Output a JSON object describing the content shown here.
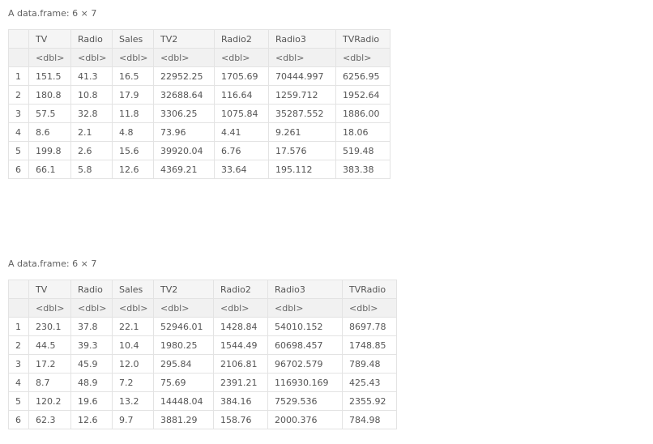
{
  "tables": [
    {
      "caption": "A data.frame: 6 × 7",
      "columns": [
        "TV",
        "Radio",
        "Sales",
        "TV2",
        "Radio2",
        "Radio3",
        "TVRadio"
      ],
      "types": [
        "<dbl>",
        "<dbl>",
        "<dbl>",
        "<dbl>",
        "<dbl>",
        "<dbl>",
        "<dbl>"
      ],
      "rows": [
        {
          "idx": "1",
          "cells": [
            "151.5",
            "41.3",
            "16.5",
            "22952.25",
            "1705.69",
            "70444.997",
            "6256.95"
          ]
        },
        {
          "idx": "2",
          "cells": [
            "180.8",
            "10.8",
            "17.9",
            "32688.64",
            "116.64",
            "1259.712",
            "1952.64"
          ]
        },
        {
          "idx": "3",
          "cells": [
            "57.5",
            "32.8",
            "11.8",
            "3306.25",
            "1075.84",
            "35287.552",
            "1886.00"
          ]
        },
        {
          "idx": "4",
          "cells": [
            "8.6",
            "2.1",
            "4.8",
            "73.96",
            "4.41",
            "9.261",
            "18.06"
          ]
        },
        {
          "idx": "5",
          "cells": [
            "199.8",
            "2.6",
            "15.6",
            "39920.04",
            "6.76",
            "17.576",
            "519.48"
          ]
        },
        {
          "idx": "6",
          "cells": [
            "66.1",
            "5.8",
            "12.6",
            "4369.21",
            "33.64",
            "195.112",
            "383.38"
          ]
        }
      ]
    },
    {
      "caption": "A data.frame: 6 × 7",
      "columns": [
        "TV",
        "Radio",
        "Sales",
        "TV2",
        "Radio2",
        "Radio3",
        "TVRadio"
      ],
      "types": [
        "<dbl>",
        "<dbl>",
        "<dbl>",
        "<dbl>",
        "<dbl>",
        "<dbl>",
        "<dbl>"
      ],
      "rows": [
        {
          "idx": "1",
          "cells": [
            "230.1",
            "37.8",
            "22.1",
            "52946.01",
            "1428.84",
            "54010.152",
            "8697.78"
          ]
        },
        {
          "idx": "2",
          "cells": [
            "44.5",
            "39.3",
            "10.4",
            "1980.25",
            "1544.49",
            "60698.457",
            "1748.85"
          ]
        },
        {
          "idx": "3",
          "cells": [
            "17.2",
            "45.9",
            "12.0",
            "295.84",
            "2106.81",
            "96702.579",
            "789.48"
          ]
        },
        {
          "idx": "4",
          "cells": [
            "8.7",
            "48.9",
            "7.2",
            "75.69",
            "2391.21",
            "116930.169",
            "425.43"
          ]
        },
        {
          "idx": "5",
          "cells": [
            "120.2",
            "19.6",
            "13.2",
            "14448.04",
            "384.16",
            "7529.536",
            "2355.92"
          ]
        },
        {
          "idx": "6",
          "cells": [
            "62.3",
            "12.6",
            "9.7",
            "3881.29",
            "158.76",
            "2000.376",
            "784.98"
          ]
        }
      ]
    }
  ]
}
